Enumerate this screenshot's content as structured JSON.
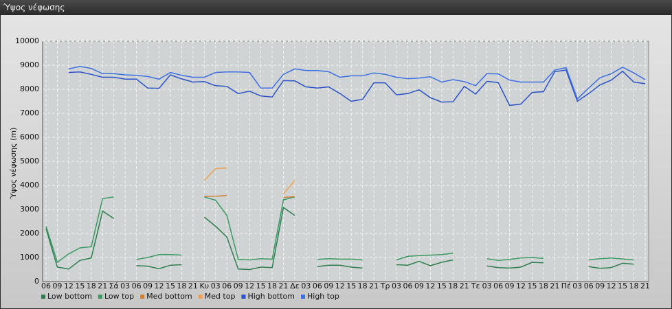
{
  "window_title": "Ύψος νέφωσης",
  "chart_data": {
    "type": "line",
    "y_label": "Ύψος νέφωσης (m)",
    "categories": [
      "06",
      "09",
      "12",
      "15",
      "18",
      "21",
      "Σά",
      "03",
      "06",
      "09",
      "12",
      "15",
      "18",
      "21",
      "Κυ",
      "03",
      "06",
      "09",
      "12",
      "15",
      "18",
      "21",
      "Δε",
      "03",
      "06",
      "09",
      "12",
      "15",
      "18",
      "21",
      "Τρ",
      "03",
      "06",
      "09",
      "12",
      "15",
      "18",
      "21",
      "Τε",
      "03",
      "06",
      "09",
      "12",
      "15",
      "18",
      "21",
      "Πέ",
      "03",
      "06",
      "09",
      "12",
      "15",
      "18",
      "21"
    ],
    "ylim": [
      0,
      10000
    ],
    "yticks": [
      0,
      1000,
      2000,
      3000,
      4000,
      5000,
      6000,
      7000,
      8000,
      9000,
      10000
    ],
    "grid": true,
    "legend": "bottom-left",
    "series": [
      {
        "name": "Low bottom",
        "color": "#2e7d50",
        "values": [
          2200,
          600,
          520,
          880,
          980,
          2930,
          2620,
          null,
          660,
          640,
          530,
          680,
          700,
          null,
          2680,
          2300,
          1850,
          520,
          500,
          600,
          580,
          3080,
          2750,
          null,
          620,
          680,
          680,
          600,
          560,
          null,
          null,
          700,
          680,
          840,
          660,
          800,
          900,
          null,
          null,
          650,
          580,
          560,
          600,
          800,
          780,
          null,
          null,
          null,
          620,
          550,
          580,
          760,
          720,
          null
        ]
      },
      {
        "name": "Low top",
        "color": "#3a9a64",
        "values": [
          2300,
          800,
          1150,
          1400,
          1450,
          3450,
          3520,
          null,
          920,
          1000,
          1120,
          1120,
          1100,
          null,
          3520,
          3380,
          2750,
          920,
          900,
          950,
          930,
          3400,
          3520,
          null,
          920,
          950,
          930,
          930,
          900,
          null,
          null,
          900,
          1050,
          1080,
          1100,
          1120,
          1180,
          null,
          null,
          950,
          880,
          920,
          980,
          1000,
          960,
          null,
          null,
          null,
          900,
          950,
          980,
          940,
          900,
          null
        ]
      },
      {
        "name": "Med bottom",
        "color": "#d08030",
        "values": [
          null,
          null,
          null,
          null,
          null,
          null,
          null,
          null,
          null,
          null,
          null,
          null,
          null,
          null,
          3550,
          3550,
          3580,
          null,
          null,
          null,
          null,
          3500,
          3530,
          null,
          null,
          null,
          null,
          null,
          null,
          null,
          null,
          null,
          null,
          null,
          null,
          null,
          null,
          null,
          null,
          null,
          null,
          null,
          null,
          null,
          null,
          null,
          null,
          null,
          null,
          null,
          null,
          null,
          null,
          null
        ]
      },
      {
        "name": "Med top",
        "color": "#f0a050",
        "values": [
          null,
          null,
          null,
          null,
          null,
          null,
          null,
          null,
          null,
          null,
          null,
          null,
          null,
          null,
          4200,
          4700,
          4730,
          null,
          null,
          null,
          null,
          3650,
          4200,
          null,
          null,
          null,
          null,
          null,
          null,
          null,
          null,
          null,
          null,
          null,
          null,
          null,
          null,
          null,
          null,
          null,
          null,
          null,
          null,
          null,
          null,
          null,
          null,
          null,
          null,
          null,
          null,
          null,
          null,
          null
        ]
      },
      {
        "name": "High bottom",
        "color": "#2a52c8",
        "values": [
          null,
          null,
          8700,
          8720,
          8620,
          8500,
          8500,
          8420,
          8420,
          8050,
          8040,
          8600,
          8430,
          8300,
          8320,
          8150,
          8120,
          7820,
          7920,
          7720,
          7680,
          8360,
          8350,
          8100,
          8050,
          8100,
          7820,
          7500,
          7580,
          8270,
          8270,
          7770,
          7820,
          7980,
          7650,
          7470,
          7480,
          8120,
          7800,
          8330,
          8280,
          7330,
          7380,
          7870,
          7900,
          8730,
          8800,
          7500,
          7820,
          8180,
          8380,
          8750,
          8300,
          8230
        ]
      },
      {
        "name": "High top",
        "color": "#3c6ee4",
        "values": [
          null,
          null,
          8850,
          8950,
          8870,
          8650,
          8650,
          8600,
          8580,
          8530,
          8420,
          8700,
          8580,
          8500,
          8500,
          8700,
          8720,
          8720,
          8700,
          8050,
          8050,
          8620,
          8850,
          8780,
          8780,
          8730,
          8500,
          8560,
          8560,
          8680,
          8620,
          8500,
          8440,
          8470,
          8520,
          8300,
          8400,
          8320,
          8150,
          8650,
          8640,
          8380,
          8300,
          8300,
          8300,
          8800,
          8900,
          7600,
          8050,
          8480,
          8650,
          8920,
          8680,
          8400
        ]
      }
    ]
  }
}
